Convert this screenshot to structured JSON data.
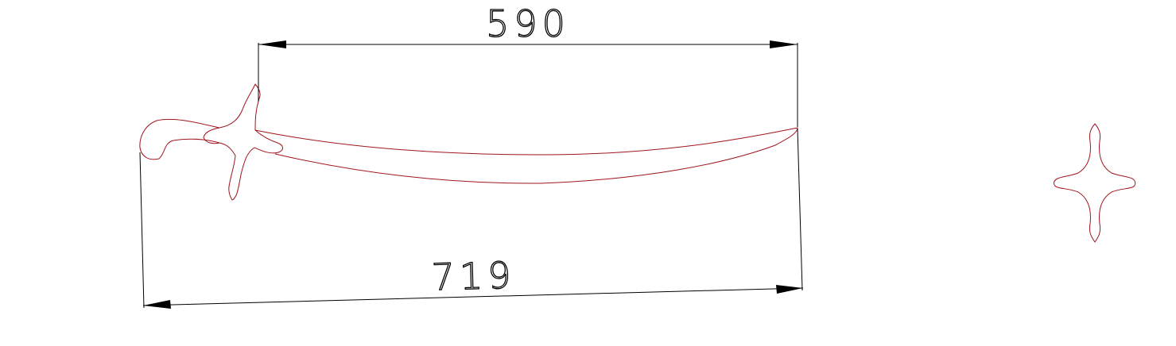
{
  "drawing": {
    "dimension_top": {
      "value": "590"
    },
    "dimension_bottom": {
      "value": "719"
    }
  },
  "colors": {
    "outline": "#a0141e",
    "dimension": "#000000",
    "background": "#ffffff"
  }
}
